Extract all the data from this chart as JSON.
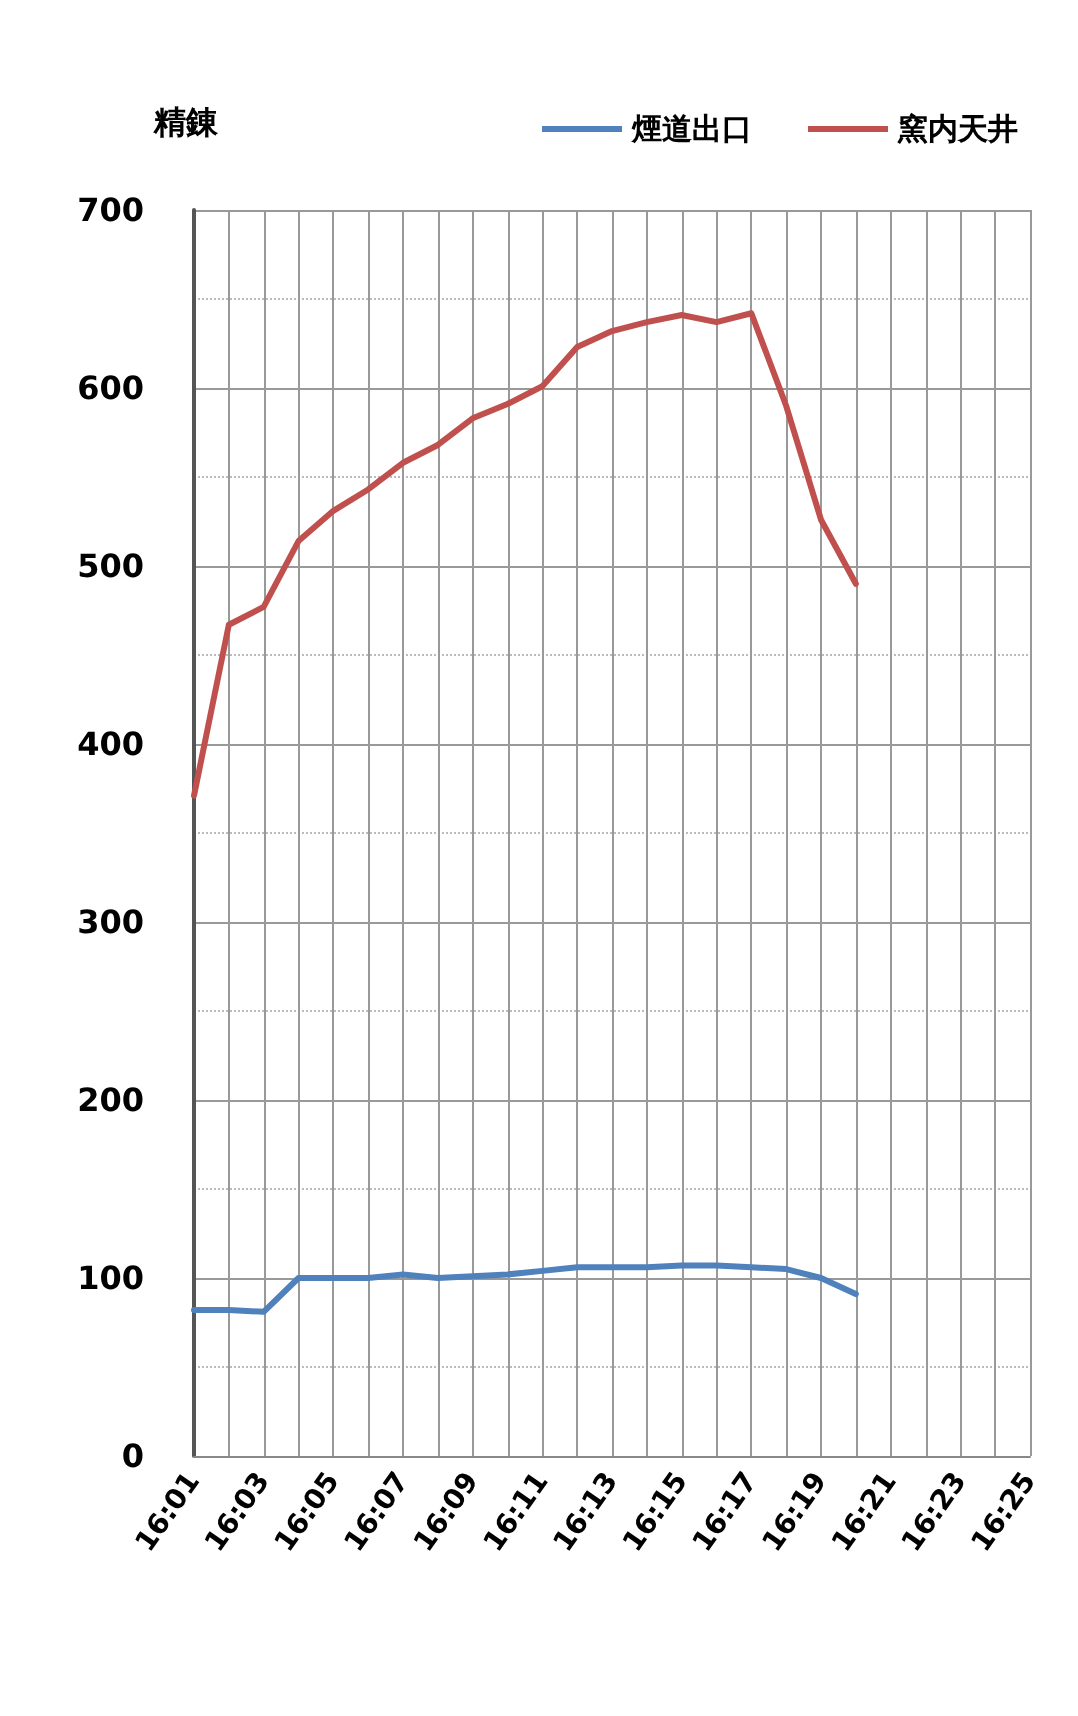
{
  "chart_data": {
    "type": "line",
    "title": "精錬",
    "categories": [
      "16:01",
      null,
      "16:03",
      null,
      "16:05",
      null,
      "16:07",
      null,
      "16:09",
      null,
      "16:11",
      null,
      "16:13",
      null,
      "16:15",
      null,
      "16:17",
      null,
      "16:19",
      null,
      "16:21",
      null,
      "16:23",
      null,
      "16:25"
    ],
    "series": [
      {
        "name": "煙道出口",
        "color": "#4f81bd",
        "values": [
          82,
          82,
          81,
          100,
          100,
          100,
          102,
          100,
          101,
          102,
          104,
          106,
          106,
          106,
          107,
          107,
          106,
          105,
          100,
          91,
          null,
          null,
          null,
          null,
          null
        ]
      },
      {
        "name": "窯内天井",
        "color": "#c0504d",
        "values": [
          371,
          467,
          477,
          514,
          531,
          543,
          558,
          568,
          583,
          591,
          601,
          623,
          632,
          637,
          641,
          637,
          642,
          590,
          526,
          490,
          null,
          null,
          null,
          null,
          null
        ]
      }
    ],
    "ylim": [
      0,
      700
    ],
    "yticks": [
      0,
      100,
      200,
      300,
      400,
      500,
      600,
      700
    ],
    "grid": true,
    "legend": "top right",
    "marker": "none",
    "line_style": "solid"
  }
}
